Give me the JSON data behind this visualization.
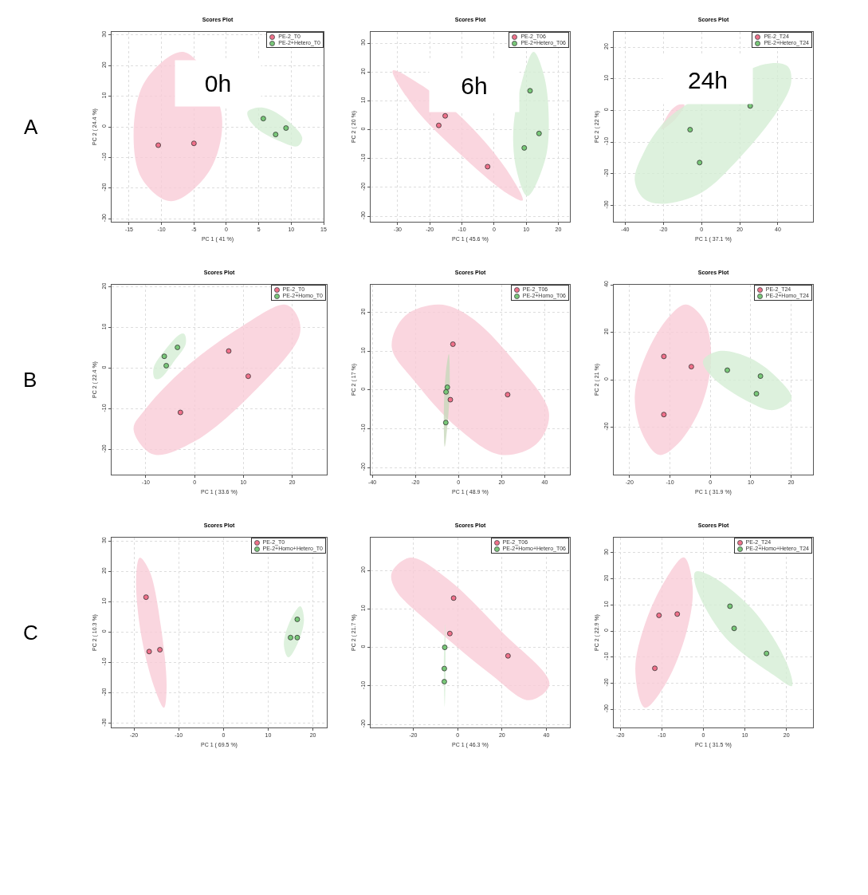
{
  "chart_data": [
    {
      "type": "scatter",
      "title": "Scores Plot",
      "xlabel": "PC 1 ( 41 %)",
      "ylabel": "PC 2 ( 24.4 %)",
      "xlim": [
        -17.7,
        15
      ],
      "ylim": [
        -31,
        31
      ],
      "xticks": [
        -15,
        -10,
        -5,
        0,
        5,
        10,
        15
      ],
      "yticks": [
        -30,
        -20,
        -10,
        0,
        10,
        20,
        30
      ],
      "grid": true,
      "legend": "top right",
      "annotations": [
        "A",
        "0h"
      ],
      "series": [
        {
          "type": "area",
          "color": "#f9ccd7",
          "x": [
            -6.5,
            -0.8,
            -2.5,
            -8.5,
            -13,
            -14.3,
            -12.5,
            -6.5
          ],
          "values": [
            24.4,
            5,
            -14,
            -24.3,
            -17,
            -2,
            15,
            24.4
          ]
        },
        {
          "type": "area",
          "color": "#d4edd4",
          "x": [
            3.3,
            5.5,
            8.5,
            11.7,
            11,
            8,
            5,
            3.5,
            3.3
          ],
          "values": [
            5,
            6.3,
            3.5,
            -3.5,
            -6.3,
            -4.5,
            -1,
            2.5,
            5
          ]
        },
        {
          "name": "PE-2_T0",
          "color": "#f0708a",
          "marker": "circle",
          "x": [
            -10.5,
            -5
          ],
          "values": [
            -6,
            -5.4
          ]
        },
        {
          "name": "PE-2+Hetero_T0",
          "color": "#78c878",
          "marker": "circle",
          "x": [
            5.7,
            7.6,
            9.2
          ],
          "values": [
            2.7,
            -2.5,
            -0.4
          ]
        }
      ]
    },
    {
      "type": "scatter",
      "title": "Scores Plot",
      "xlabel": "PC 1 ( 45.6 %)",
      "ylabel": "PC 2 ( 20 %)",
      "xlim": [
        -38.4,
        23.6
      ],
      "ylim": [
        -31.9,
        33.9
      ],
      "xticks": [
        -30,
        -20,
        -10,
        0,
        10,
        20
      ],
      "yticks": [
        -30,
        -20,
        -10,
        0,
        10,
        20,
        30
      ],
      "grid": true,
      "legend": "top right",
      "annotations": [
        "6h"
      ],
      "series": [
        {
          "type": "area",
          "color": "#f9ccd7",
          "x": [
            -31.5,
            -22,
            -8,
            4,
            8.9,
            4,
            -10,
            -25,
            -31.5
          ],
          "values": [
            20.5,
            15,
            2,
            -14,
            -24.5,
            -22,
            -9,
            8,
            20.5
          ]
        },
        {
          "type": "area",
          "color": "#d4edd4",
          "x": [
            12.3,
            15.5,
            17,
            16,
            10.4,
            7,
            6,
            8.5,
            12.3
          ],
          "values": [
            27,
            19,
            5,
            -10,
            -23,
            -14,
            0,
            16,
            27
          ]
        },
        {
          "name": "PE-2_T06",
          "color": "#f0708a",
          "marker": "circle",
          "x": [
            -15.2,
            -17.2,
            -2
          ],
          "values": [
            4.8,
            1.5,
            -12.8
          ]
        },
        {
          "name": "PE-2+Hetero_T06",
          "color": "#78c878",
          "marker": "circle",
          "x": [
            11.2,
            9.4,
            14
          ],
          "values": [
            13.5,
            -6.3,
            -1.3
          ]
        }
      ]
    },
    {
      "type": "scatter",
      "title": "Scores Plot",
      "xlabel": "PC 1 ( 37.1 %)",
      "ylabel": "PC 2 ( 22 %)",
      "xlim": [
        -46,
        58.4
      ],
      "ylim": [
        -35.2,
        24.8
      ],
      "xticks": [
        -40,
        -20,
        0,
        20,
        40
      ],
      "yticks": [
        -30,
        -20,
        -10,
        0,
        10,
        20
      ],
      "grid": true,
      "legend": "top right",
      "annotations": [
        "24h"
      ],
      "series": [
        {
          "type": "area",
          "color": "#f9ccd7",
          "x": [
            -21,
            -16,
            -12,
            -9,
            -14,
            -21
          ],
          "values": [
            -6,
            0,
            1.8,
            1.8,
            -3,
            -6
          ]
        },
        {
          "type": "area",
          "color": "#d4edd4",
          "x": [
            -35,
            -30,
            -20,
            -10,
            33,
            45,
            47,
            40,
            20,
            0,
            -20,
            -30,
            -35
          ],
          "values": [
            -22,
            -13,
            -4,
            1,
            14.6,
            14,
            9,
            0,
            -15,
            -26,
            -29.5,
            -28,
            -22
          ]
        },
        {
          "name": "PE-2_T24",
          "color": "#f0708a",
          "marker": "circle",
          "x": [
            null,
            null,
            null
          ],
          "values": [
            null,
            null,
            null
          ]
        },
        {
          "name": "PE-2+Hetero_T24",
          "color": "#78c878",
          "marker": "circle",
          "x": [
            25.5,
            -6,
            -1
          ],
          "values": [
            1.4,
            -6.1,
            -16.5
          ]
        }
      ]
    },
    {
      "type": "scatter",
      "title": "Scores Plot",
      "xlabel": "PC 1 ( 33.6 %)",
      "ylabel": "PC 2 ( 22.4 %)",
      "xlim": [
        -17,
        27.1
      ],
      "ylim": [
        -26.2,
        20.5
      ],
      "xticks": [
        -10,
        0,
        10,
        20
      ],
      "yticks": [
        -20,
        -10,
        0,
        10,
        20
      ],
      "grid": true,
      "legend": "top right",
      "annotations": [
        "B"
      ],
      "series": [
        {
          "type": "area",
          "color": "#f9ccd7",
          "x": [
            -12.5,
            -8.5,
            0,
            12,
            21.5,
            21,
            18.6,
            10,
            -2,
            -10,
            -12.5
          ],
          "values": [
            -15,
            -21.2,
            -18,
            -6,
            8,
            13,
            15.6,
            10.5,
            0,
            -10,
            -15
          ]
        },
        {
          "type": "area",
          "color": "#d4edd4",
          "x": [
            -2.1,
            -1.8,
            -4,
            -7,
            -8.1,
            -8.4,
            -6,
            -3,
            -2.1
          ],
          "values": [
            8.4,
            6,
            2,
            -2.5,
            -2.6,
            0,
            4.5,
            8.3,
            8.4
          ]
        },
        {
          "name": "PE-2_T0",
          "color": "#f0708a",
          "marker": "circle",
          "x": [
            7,
            11,
            -2.9
          ],
          "values": [
            4.2,
            -2,
            -10.9
          ]
        },
        {
          "name": "PE-2+Homo_T0",
          "color": "#78c878",
          "marker": "circle",
          "x": [
            -6.2,
            -5.8,
            -3.5
          ],
          "values": [
            2.9,
            0.6,
            5.1
          ]
        }
      ]
    },
    {
      "type": "scatter",
      "title": "Scores Plot",
      "xlabel": "PC 1 ( 48.9 %)",
      "ylabel": "PC 2 ( 17 %)",
      "xlim": [
        -40.8,
        51.7
      ],
      "ylim": [
        -21.8,
        27.1
      ],
      "xticks": [
        -40,
        -20,
        0,
        20,
        40
      ],
      "yticks": [
        -20,
        -10,
        0,
        10,
        20
      ],
      "grid": true,
      "legend": "top right",
      "series": [
        {
          "type": "area",
          "color": "#f9ccd7",
          "x": [
            -9,
            5,
            25,
            42,
            36,
            19.6,
            0,
            -20,
            -31,
            -25,
            -9
          ],
          "values": [
            22,
            19,
            8,
            -6,
            -14,
            -16.7,
            -10,
            2,
            11,
            19,
            22
          ]
        },
        {
          "type": "area",
          "color": "#c8d8bc",
          "x": [
            -4.5,
            -4.1,
            -5.3,
            -6.4,
            -6.8,
            -5.8,
            -4.5
          ],
          "values": [
            9.3,
            0,
            -10,
            -14.6,
            -5,
            5,
            9.3
          ]
        },
        {
          "name": "PE-2_T06",
          "color": "#f0708a",
          "marker": "circle",
          "x": [
            -2.6,
            22.8,
            -3.8
          ],
          "values": [
            11.8,
            -1.2,
            -2.5
          ]
        },
        {
          "name": "PE-2+Homo_T06",
          "color": "#78c878",
          "marker": "circle",
          "x": [
            -5.2,
            -5.8,
            -5.9
          ],
          "values": [
            0.7,
            -0.5,
            -8.4
          ]
        }
      ]
    },
    {
      "type": "scatter",
      "title": "Scores Plot",
      "xlabel": "PC 1 ( 31.9 %)",
      "ylabel": "PC 2 ( 21 %)",
      "xlim": [
        -23.9,
        25.4
      ],
      "ylim": [
        -40,
        40
      ],
      "xticks": [
        -20,
        -10,
        0,
        10,
        20
      ],
      "yticks": [
        -20,
        0,
        20,
        40
      ],
      "grid": true,
      "legend": "top right",
      "series": [
        {
          "type": "area",
          "color": "#f9ccd7",
          "x": [
            -6,
            -1.5,
            0.2,
            -2,
            -8,
            -12.6,
            -16.5,
            -18.7,
            -15.5,
            -10,
            -6
          ],
          "values": [
            31.7,
            25,
            10,
            -10,
            -27,
            -31.7,
            -24,
            -7,
            12,
            27,
            31.7
          ]
        },
        {
          "type": "area",
          "color": "#d4edd4",
          "x": [
            -1.8,
            2.2,
            10,
            17,
            20.1,
            15.7,
            8,
            0,
            -1.8
          ],
          "values": [
            8,
            12.1,
            9,
            0,
            -7.9,
            -12.8,
            -8,
            2,
            8
          ]
        },
        {
          "name": "PE-2_T24",
          "color": "#f0708a",
          "marker": "circle",
          "x": [
            -11.5,
            -4.7,
            -11.5
          ],
          "values": [
            9.8,
            5.5,
            -14.7
          ]
        },
        {
          "name": "PE-2+Homo_T24",
          "color": "#78c878",
          "marker": "circle",
          "x": [
            4.2,
            12.4,
            11.4
          ],
          "values": [
            4,
            1.5,
            -5.9
          ]
        }
      ]
    },
    {
      "type": "scatter",
      "title": "Scores Plot",
      "xlabel": "PC 1 ( 69.5 %)",
      "ylabel": "PC 2 ( 10.3 %)",
      "xlim": [
        -25,
        23.1
      ],
      "ylim": [
        -31.4,
        31.1
      ],
      "xticks": [
        -20,
        -10,
        0,
        10,
        20
      ],
      "yticks": [
        -30,
        -20,
        -10,
        0,
        10,
        20,
        30
      ],
      "grid": true,
      "legend": "top right",
      "annotations": [
        "C"
      ],
      "series": [
        {
          "type": "area",
          "color": "#f9ccd7",
          "x": [
            -18.7,
            -16.5,
            -14,
            -12.7,
            -13.3,
            -15.5,
            -18.5,
            -19.5,
            -18.7
          ],
          "values": [
            24.5,
            20,
            2,
            -18,
            -24.9,
            -18,
            0,
            18,
            24.5
          ]
        },
        {
          "type": "area",
          "color": "#d4edd4",
          "x": [
            17.2,
            18,
            16.5,
            14.5,
            13.5,
            15,
            17.2
          ],
          "values": [
            8.5,
            4,
            -4,
            -8.3,
            -4,
            4,
            8.5
          ]
        },
        {
          "name": "PE-2_T0",
          "color": "#f0708a",
          "marker": "circle",
          "x": [
            -17.3,
            -16.6,
            -14.2
          ],
          "values": [
            11.5,
            -6.4,
            -5.8
          ]
        },
        {
          "name": "PE-2+Homo+Hetero_T0",
          "color": "#78c878",
          "marker": "circle",
          "x": [
            16.5,
            15,
            16.5
          ],
          "values": [
            4.2,
            -1.8,
            -1.8
          ]
        }
      ]
    },
    {
      "type": "scatter",
      "title": "Scores Plot",
      "xlabel": "PC 1 ( 46.3 %)",
      "ylabel": "PC 2 ( 21.7 %)",
      "xlim": [
        -39.2,
        50.6
      ],
      "ylim": [
        -20.8,
        28.5
      ],
      "xticks": [
        -20,
        0,
        20,
        40
      ],
      "yticks": [
        -20,
        -10,
        0,
        10,
        20
      ],
      "grid": true,
      "legend": "top right",
      "series": [
        {
          "type": "area",
          "color": "#f9ccd7",
          "x": [
            -29.7,
            -21.3,
            -5,
            20,
            41.4,
            32.3,
            15,
            -10,
            -28,
            -29.7
          ],
          "values": [
            19.4,
            23.3,
            18,
            4,
            -9.5,
            -13.7,
            -7,
            5,
            15,
            19.4
          ]
        },
        {
          "type": "area",
          "color": "#d4edd4",
          "x": [
            -5.6,
            -5.4,
            -5.8,
            -6.2,
            -5.6
          ],
          "values": [
            6,
            -5,
            -15.4,
            -5,
            6
          ]
        },
        {
          "name": "PE-2_T06",
          "color": "#f0708a",
          "marker": "circle",
          "x": [
            -1.8,
            -3.5,
            22.7
          ],
          "values": [
            12.8,
            3.6,
            -2.2
          ]
        },
        {
          "name": "PE-2+Homo+Hetero_T06",
          "color": "#78c878",
          "marker": "circle",
          "x": [
            -5.8,
            -6,
            -6
          ],
          "values": [
            0,
            -5.5,
            -8.9
          ]
        }
      ]
    },
    {
      "type": "scatter",
      "title": "Scores Plot",
      "xlabel": "PC 1 ( 31.5 %)",
      "ylabel": "PC 2 ( 22.9 %)",
      "xlim": [
        -21.6,
        26.4
      ],
      "ylim": [
        -37,
        35.8
      ],
      "xticks": [
        -20,
        -10,
        0,
        10,
        20
      ],
      "yticks": [
        -30,
        -20,
        -10,
        0,
        10,
        20,
        30
      ],
      "grid": true,
      "legend": "top right",
      "series": [
        {
          "type": "area",
          "color": "#f9ccd7",
          "x": [
            -4.7,
            -2.6,
            -4,
            -9,
            -14.1,
            -16.4,
            -14,
            -9,
            -4.7
          ],
          "values": [
            28.2,
            17,
            0,
            -20,
            -29.4,
            -15,
            3,
            20,
            28.2
          ]
        },
        {
          "type": "area",
          "color": "#d4edd4",
          "x": [
            -1.9,
            2,
            12,
            20,
            21.3,
            17,
            5,
            -2,
            -1.9
          ],
          "values": [
            22.7,
            21,
            8,
            -12,
            -21.1,
            -17,
            -2,
            18,
            22.7
          ]
        },
        {
          "name": "PE-2_T24",
          "color": "#f0708a",
          "marker": "circle",
          "x": [
            -10.7,
            -6.3,
            -11.7
          ],
          "values": [
            6,
            6.5,
            -14.3
          ]
        },
        {
          "name": "PE-2+Homo+Hetero_T24",
          "color": "#78c878",
          "marker": "circle",
          "x": [
            6.4,
            7.4,
            15.2
          ],
          "values": [
            9.5,
            1,
            -8.6
          ]
        }
      ]
    }
  ]
}
